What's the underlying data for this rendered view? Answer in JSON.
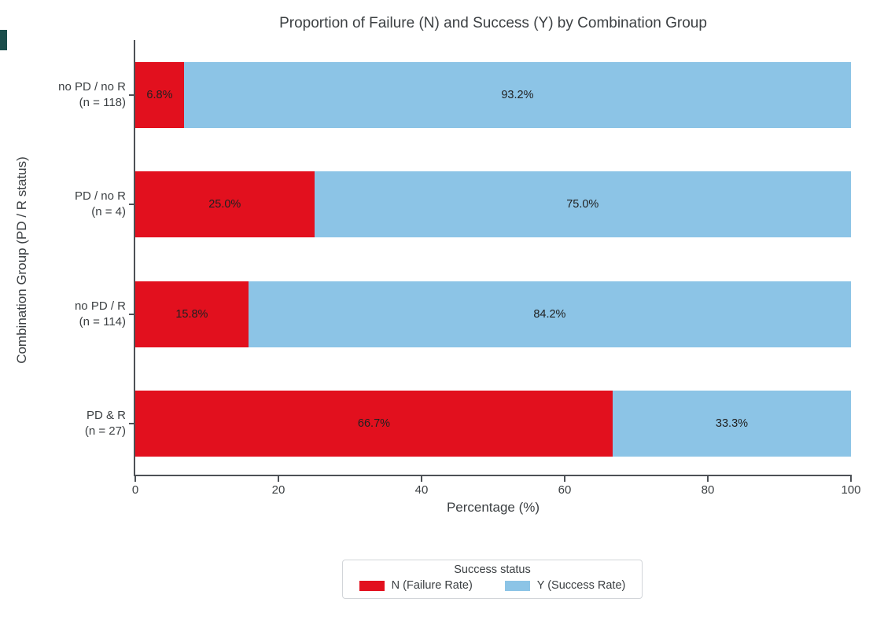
{
  "colors": {
    "background": "#ffffff",
    "failure": "#e2101e",
    "success": "#8cc4e6",
    "axis": "#4d5156",
    "text": "#3c4043",
    "bar_label": "#202020",
    "legend_border": "#d2d5d9",
    "edge_artifact": "#1b4e4c"
  },
  "chart_data": {
    "type": "bar",
    "orientation": "horizontal",
    "stacked": true,
    "title": "Proportion of Failure (N) and Success (Y) by Combination Group",
    "xlabel": "Percentage (%)",
    "ylabel": "Combination Group (PD / R status)",
    "xlim": [
      0,
      100
    ],
    "x_ticks": [
      0,
      20,
      40,
      60,
      80,
      100
    ],
    "grid": false,
    "categories": [
      {
        "label": "no PD / no R",
        "n_label": "(n = 118)"
      },
      {
        "label": "PD / no R",
        "n_label": "(n = 4)"
      },
      {
        "label": "no PD / R",
        "n_label": "(n = 114)"
      },
      {
        "label": "PD & R",
        "n_label": "(n = 27)"
      }
    ],
    "series": [
      {
        "name": "N (Failure Rate)",
        "color_key": "failure",
        "values": [
          6.8,
          25.0,
          15.8,
          66.7
        ],
        "labels": [
          "6.8%",
          "25.0%",
          "15.8%",
          "66.7%"
        ]
      },
      {
        "name": "Y (Success Rate)",
        "color_key": "success",
        "values": [
          93.2,
          75.0,
          84.2,
          33.3
        ],
        "labels": [
          "93.2%",
          "75.0%",
          "84.2%",
          "33.3%"
        ]
      }
    ],
    "legend": {
      "title": "Success status",
      "position": "bottom-center"
    }
  }
}
